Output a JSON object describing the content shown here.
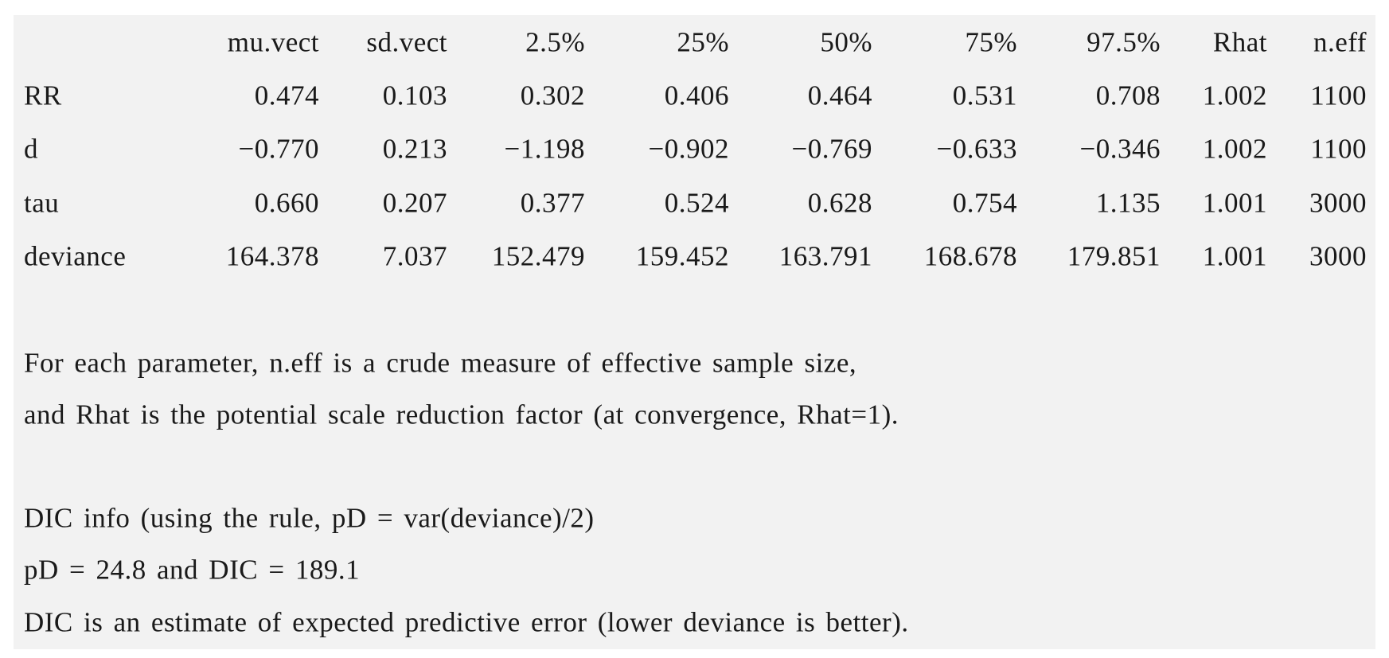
{
  "table": {
    "header": [
      "mu.vect",
      "sd.vect",
      "2.5%",
      "25%",
      "50%",
      "75%",
      "97.5%",
      "Rhat",
      "n.eff"
    ],
    "rows": [
      [
        "RR",
        "0.474",
        "0.103",
        "0.302",
        "0.406",
        "0.464",
        "0.531",
        "0.708",
        "1.002",
        "1100"
      ],
      [
        "d",
        "−0.770",
        "0.213",
        "−1.198",
        "−0.902",
        "−0.769",
        "−0.633",
        "−0.346",
        "1.002",
        "1100"
      ],
      [
        "tau",
        "0.660",
        "0.207",
        "0.377",
        "0.524",
        "0.628",
        "0.754",
        "1.135",
        "1.001",
        "3000"
      ],
      [
        "deviance",
        "164.378",
        "7.037",
        "152.479",
        "159.452",
        "163.791",
        "168.678",
        "179.851",
        "1.001",
        "3000"
      ]
    ]
  },
  "notes": [
    [
      "For each parameter, n.eff is a crude measure of effective sample size,",
      "and Rhat is the potential scale reduction factor (at convergence, Rhat=1)."
    ],
    [
      "DIC info (using the rule, pD = var(deviance)/2)",
      "pD = 24.8 and DIC = 189.1",
      "DIC is an estimate of expected predictive error (lower deviance is better)."
    ]
  ]
}
